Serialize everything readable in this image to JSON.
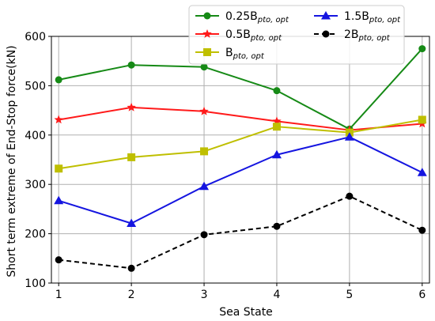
{
  "chart_data": {
    "type": "line",
    "x": [
      1,
      2,
      3,
      4,
      5,
      6
    ],
    "xlabel": "Sea State",
    "ylabel": "Short term extreme of End-Stop force(kN)",
    "xlim": [
      0.9,
      6.1
    ],
    "ylim": [
      100,
      600
    ],
    "xticks": [
      "1",
      "2",
      "3",
      "4",
      "5",
      "6"
    ],
    "yticks": [
      "100",
      "200",
      "300",
      "400",
      "500",
      "600"
    ],
    "grid": true,
    "legend_position": "top-right",
    "series": [
      {
        "name": "0.25B_pto,opt",
        "legend_main": "0.25B",
        "legend_sub": "pto, opt",
        "color": "#168a16",
        "marker": "circle",
        "dash": "solid",
        "values": [
          512,
          542,
          538,
          490,
          412,
          575
        ]
      },
      {
        "name": "0.5B_pto,opt",
        "legend_main": "0.5B",
        "legend_sub": "pto, opt",
        "color": "#ff1a1a",
        "marker": "star",
        "dash": "solid",
        "values": [
          431,
          456,
          448,
          428,
          410,
          423
        ]
      },
      {
        "name": "B_pto,opt",
        "legend_main": "B",
        "legend_sub": "pto, opt",
        "color": "#bfbf00",
        "marker": "square",
        "dash": "solid",
        "values": [
          332,
          355,
          367,
          417,
          405,
          431
        ]
      },
      {
        "name": "1.5B_pto,opt",
        "legend_main": "1.5B",
        "legend_sub": "pto, opt",
        "color": "#1515e0",
        "marker": "triangle",
        "dash": "solid",
        "values": [
          267,
          221,
          296,
          360,
          396,
          324
        ]
      },
      {
        "name": "2B_pto,opt",
        "legend_main": "2B",
        "legend_sub": "pto, opt",
        "color": "#000000",
        "marker": "circle",
        "dash": "dashed",
        "values": [
          147,
          130,
          198,
          215,
          276,
          207
        ]
      }
    ]
  }
}
